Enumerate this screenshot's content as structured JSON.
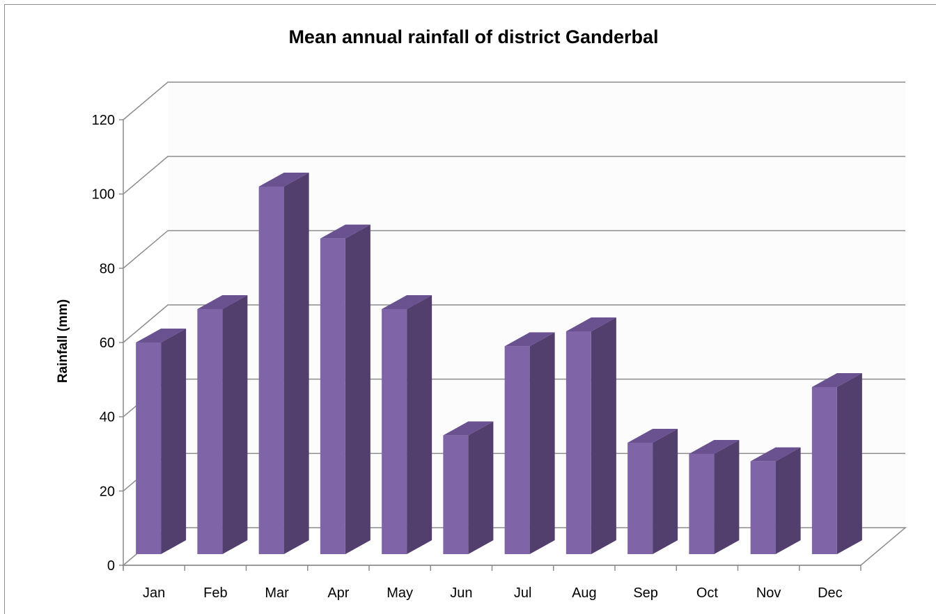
{
  "chart_data": {
    "type": "bar",
    "title": "Mean annual rainfall of district Ganderbal",
    "xlabel": "",
    "ylabel": "Rainfall (mm)",
    "categories": [
      "Jan",
      "Feb",
      "Mar",
      "Apr",
      "May",
      "Jun",
      "Jul",
      "Aug",
      "Sep",
      "Oct",
      "Nov",
      "Dec"
    ],
    "values": [
      60,
      69,
      102,
      88,
      69,
      35,
      59,
      63,
      33,
      30,
      28,
      48
    ],
    "ylim": [
      0,
      120
    ],
    "yticks": [
      0,
      20,
      40,
      60,
      80,
      100,
      120
    ],
    "grid": true,
    "legend": "none",
    "style": "3d-column",
    "colors": {
      "front": "#7f65a8",
      "side": "#523f6d",
      "top": "#6a5290",
      "grid": "#8c8c8c"
    }
  }
}
